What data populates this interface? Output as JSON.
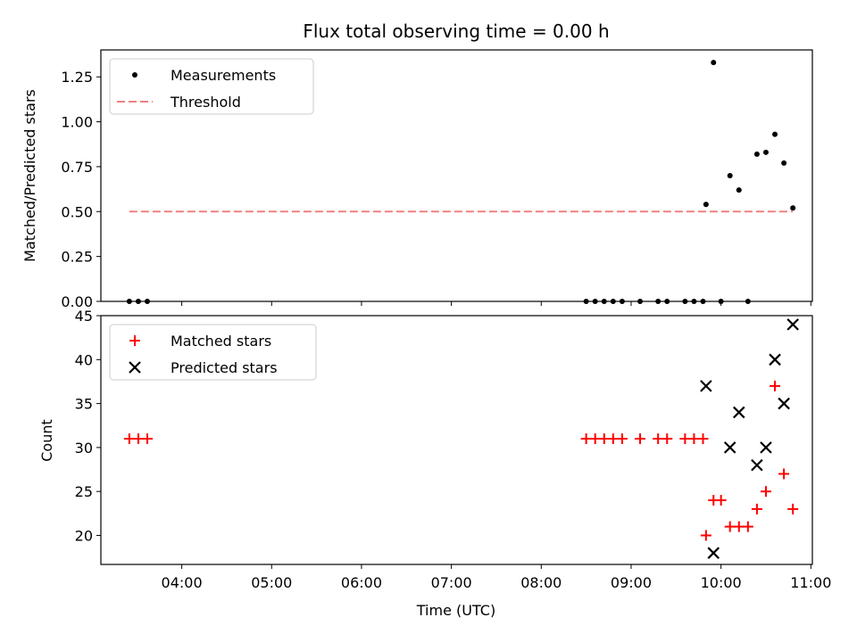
{
  "chart_data": [
    {
      "type": "scatter",
      "title": "Flux total observing time = 0.00 h",
      "xlabel": "",
      "ylabel": "Matched/Predicted stars",
      "xlim": [
        "03:06",
        "11:01"
      ],
      "ylim": [
        0,
        1.4
      ],
      "yticks": [
        "0.00",
        "0.25",
        "0.50",
        "0.75",
        "1.00",
        "1.25"
      ],
      "legend_position": "top-left",
      "series": [
        {
          "name": "Measurements",
          "kind": "points",
          "color": "#000000",
          "x": [
            "03:25",
            "03:31",
            "03:37",
            "08:30",
            "08:36",
            "08:42",
            "08:48",
            "08:54",
            "09:06",
            "09:18",
            "09:24",
            "09:36",
            "09:42",
            "09:48",
            "09:50",
            "09:55",
            "10:00",
            "10:06",
            "10:12",
            "10:18",
            "10:24",
            "10:30",
            "10:36",
            "10:42",
            "10:48"
          ],
          "y": [
            0,
            0,
            0,
            0,
            0,
            0,
            0,
            0,
            0,
            0,
            0,
            0,
            0,
            0,
            0.54,
            1.33,
            0,
            0.7,
            0.62,
            0,
            0.82,
            0.83,
            0.93,
            0.77,
            0.52
          ]
        },
        {
          "name": "Threshold",
          "kind": "dashed-line",
          "color": "#f08080",
          "x": [
            "03:25",
            "10:48"
          ],
          "y": [
            0.5,
            0.5
          ]
        }
      ]
    },
    {
      "type": "scatter",
      "xlabel": "Time (UTC)",
      "ylabel": "Count",
      "xlim": [
        "03:06",
        "11:01"
      ],
      "ylim": [
        16.7,
        45
      ],
      "yticks": [
        "20",
        "25",
        "30",
        "35",
        "40",
        "45"
      ],
      "xticks": [
        "04:00",
        "05:00",
        "06:00",
        "07:00",
        "08:00",
        "09:00",
        "10:00",
        "11:00"
      ],
      "legend_position": "top-left",
      "series": [
        {
          "name": "Matched stars",
          "marker": "plus",
          "color": "#ff0000",
          "x": [
            "03:25",
            "03:31",
            "03:37",
            "08:30",
            "08:36",
            "08:42",
            "08:48",
            "08:54",
            "09:06",
            "09:18",
            "09:24",
            "09:36",
            "09:42",
            "09:48",
            "09:50",
            "09:55",
            "10:00",
            "10:06",
            "10:12",
            "10:18",
            "10:24",
            "10:30",
            "10:36",
            "10:42",
            "10:48"
          ],
          "y": [
            31,
            31,
            31,
            31,
            31,
            31,
            31,
            31,
            31,
            31,
            31,
            31,
            31,
            31,
            20,
            24,
            24,
            21,
            21,
            21,
            23,
            25,
            37,
            27,
            23
          ]
        },
        {
          "name": "Predicted stars",
          "marker": "x",
          "color": "#000000",
          "x": [
            "09:50",
            "09:55",
            "10:06",
            "10:12",
            "10:24",
            "10:30",
            "10:36",
            "10:42",
            "10:48"
          ],
          "y": [
            37,
            18,
            30,
            34,
            28,
            30,
            40,
            35,
            44
          ]
        }
      ]
    }
  ]
}
